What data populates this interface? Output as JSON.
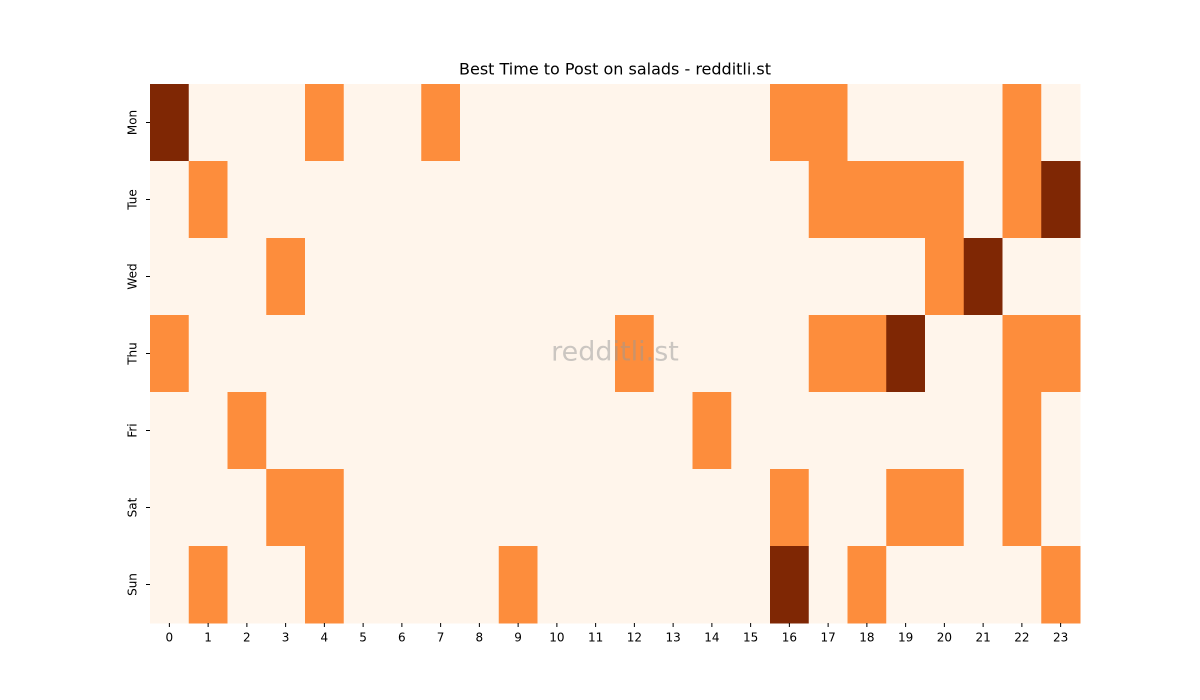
{
  "chart_data": {
    "type": "heatmap",
    "title": "Best Time to Post on salads - redditli.st",
    "watermark": "redditli.st",
    "columns": [
      0,
      1,
      2,
      3,
      4,
      5,
      6,
      7,
      8,
      9,
      10,
      11,
      12,
      13,
      14,
      15,
      16,
      17,
      18,
      19,
      20,
      21,
      22,
      23
    ],
    "rows": [
      "Mon",
      "Tue",
      "Wed",
      "Thu",
      "Fri",
      "Sat",
      "Sun"
    ],
    "values": [
      [
        2,
        0,
        0,
        0,
        1,
        0,
        0,
        1,
        0,
        0,
        0,
        0,
        0,
        0,
        0,
        0,
        1,
        1,
        0,
        0,
        0,
        0,
        1,
        0
      ],
      [
        0,
        1,
        0,
        0,
        0,
        0,
        0,
        0,
        0,
        0,
        0,
        0,
        0,
        0,
        0,
        0,
        0,
        1,
        1,
        1,
        1,
        0,
        1,
        2
      ],
      [
        0,
        0,
        0,
        1,
        0,
        0,
        0,
        0,
        0,
        0,
        0,
        0,
        0,
        0,
        0,
        0,
        0,
        0,
        0,
        0,
        1,
        2,
        0,
        0
      ],
      [
        1,
        0,
        0,
        0,
        0,
        0,
        0,
        0,
        0,
        0,
        0,
        0,
        1,
        0,
        0,
        0,
        0,
        1,
        1,
        2,
        0,
        0,
        1,
        1
      ],
      [
        0,
        0,
        1,
        0,
        0,
        0,
        0,
        0,
        0,
        0,
        0,
        0,
        0,
        0,
        1,
        0,
        0,
        0,
        0,
        0,
        0,
        0,
        1,
        0
      ],
      [
        0,
        0,
        0,
        1,
        1,
        0,
        0,
        0,
        0,
        0,
        0,
        0,
        0,
        0,
        0,
        0,
        1,
        0,
        0,
        1,
        1,
        0,
        1,
        0
      ],
      [
        0,
        1,
        0,
        0,
        1,
        0,
        0,
        0,
        0,
        1,
        0,
        0,
        0,
        0,
        0,
        0,
        2,
        0,
        1,
        0,
        0,
        0,
        0,
        1
      ]
    ],
    "colors": [
      "#fff5eb",
      "#fd8d3c",
      "#7f2704"
    ]
  }
}
